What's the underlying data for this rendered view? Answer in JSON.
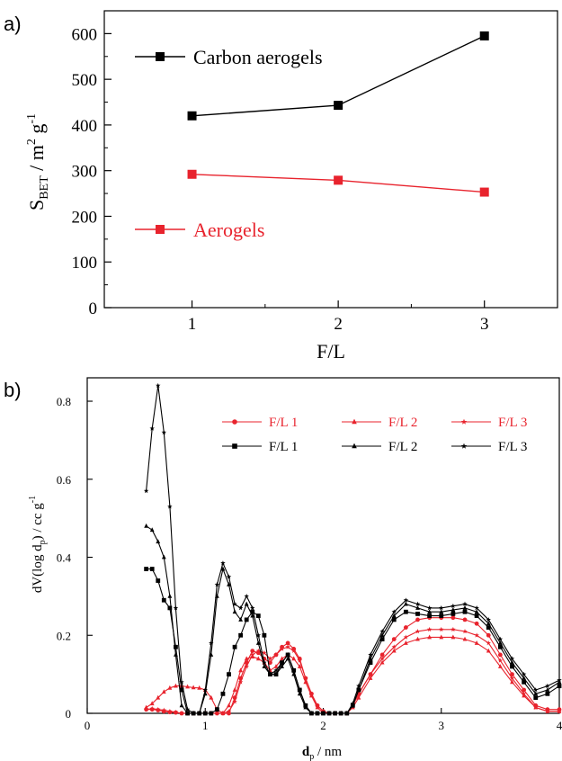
{
  "panels": {
    "a": "a)",
    "b": "b)"
  },
  "colors": {
    "black": "#000000",
    "red": "#e8232d"
  },
  "chart_data": [
    {
      "type": "line",
      "x": [
        1,
        2,
        3
      ],
      "xticks": [
        "1",
        "2",
        "3"
      ],
      "yticks": [
        "0",
        "100",
        "200",
        "300",
        "400",
        "500",
        "600"
      ],
      "xlim": [
        0.4,
        3.5
      ],
      "ylim": [
        0,
        650
      ],
      "xlabel": "F/L",
      "ylabel": {
        "main": "S",
        "sub": "BET",
        "unit": " / m",
        "sup1": "2",
        "unit2": " g",
        "sup2": "-1"
      },
      "series": [
        {
          "name": "Carbon aerogels",
          "color": "#000000",
          "marker": "square",
          "values": [
            420,
            443,
            595
          ]
        },
        {
          "name": "Aerogels",
          "color": "#e8232d",
          "marker": "square",
          "values": [
            292,
            279,
            253
          ]
        }
      ],
      "legend_placement": "left"
    },
    {
      "type": "line",
      "xlim": [
        0,
        4
      ],
      "ylim": [
        0,
        0.86
      ],
      "xticks": [
        "0",
        "1",
        "2",
        "3",
        "4"
      ],
      "yticks": [
        "0",
        "0.2",
        "0.4",
        "0.6",
        "0.8"
      ],
      "xlabel": {
        "main": "d",
        "sub": "p",
        "unit": " / nm"
      },
      "ylabel": {
        "pre": "dV(log d",
        "sub": "p",
        "post": ") / cc g",
        "sup": "-1"
      },
      "legend_placement": "top-right",
      "series": [
        {
          "name": "F/L 1",
          "color": "#e8232d",
          "marker": "circle",
          "x": [
            0.5,
            0.55,
            0.6,
            0.65,
            0.7,
            0.75,
            0.8,
            0.85,
            0.9,
            0.95,
            1.0,
            1.05,
            1.1,
            1.15,
            1.2,
            1.25,
            1.3,
            1.35,
            1.4,
            1.45,
            1.5,
            1.55,
            1.6,
            1.65,
            1.7,
            1.75,
            1.8,
            1.85,
            1.9,
            1.95,
            2.0,
            2.05,
            2.1,
            2.15,
            2.2,
            2.25,
            2.3,
            2.4,
            2.5,
            2.6,
            2.7,
            2.8,
            2.9,
            3.0,
            3.1,
            3.2,
            3.3,
            3.4,
            3.5,
            3.6,
            3.7,
            3.8,
            3.9,
            4.0
          ],
          "y": [
            0.01,
            0.01,
            0.008,
            0.005,
            0.003,
            0.002,
            0.0,
            0.0,
            0.0,
            0.0,
            0.0,
            0.0,
            0.0,
            0.0,
            0.0,
            0.04,
            0.09,
            0.13,
            0.16,
            0.155,
            0.14,
            0.13,
            0.15,
            0.17,
            0.18,
            0.165,
            0.14,
            0.09,
            0.05,
            0.02,
            0.005,
            0.0,
            0.0,
            0.0,
            0.0,
            0.02,
            0.05,
            0.1,
            0.15,
            0.19,
            0.22,
            0.24,
            0.245,
            0.245,
            0.245,
            0.24,
            0.23,
            0.2,
            0.15,
            0.1,
            0.06,
            0.02,
            0.01,
            0.01
          ]
        },
        {
          "name": "F/L 2",
          "color": "#e8232d",
          "marker": "triangle",
          "x": [
            0.5,
            0.55,
            0.6,
            0.65,
            0.7,
            0.75,
            0.8,
            0.85,
            0.9,
            0.95,
            1.0,
            1.05,
            1.1,
            1.15,
            1.2,
            1.25,
            1.3,
            1.35,
            1.4,
            1.45,
            1.5,
            1.55,
            1.6,
            1.65,
            1.7,
            1.75,
            1.8,
            1.85,
            1.9,
            1.95,
            2.0,
            2.05,
            2.1,
            2.15,
            2.2,
            2.25,
            2.3,
            2.4,
            2.5,
            2.6,
            2.7,
            2.8,
            2.9,
            3.0,
            3.1,
            3.2,
            3.3,
            3.4,
            3.5,
            3.6,
            3.7,
            3.8,
            3.9,
            4.0
          ],
          "y": [
            0.015,
            0.025,
            0.04,
            0.055,
            0.065,
            0.07,
            0.07,
            0.068,
            0.066,
            0.065,
            0.06,
            0.04,
            0.01,
            0.0,
            0.02,
            0.06,
            0.11,
            0.14,
            0.145,
            0.14,
            0.13,
            0.11,
            0.12,
            0.14,
            0.15,
            0.14,
            0.12,
            0.08,
            0.045,
            0.015,
            0.0,
            0.0,
            0.0,
            0.0,
            0.0,
            0.015,
            0.04,
            0.09,
            0.13,
            0.16,
            0.18,
            0.19,
            0.195,
            0.195,
            0.195,
            0.19,
            0.18,
            0.16,
            0.12,
            0.08,
            0.045,
            0.015,
            0.005,
            0.005
          ]
        },
        {
          "name": "F/L 3",
          "color": "#e8232d",
          "marker": "star",
          "x": [
            0.5,
            0.55,
            0.6,
            0.65,
            0.7,
            0.75,
            0.8,
            0.85,
            0.9,
            0.95,
            1.0,
            1.05,
            1.1,
            1.15,
            1.2,
            1.25,
            1.3,
            1.35,
            1.4,
            1.45,
            1.5,
            1.55,
            1.6,
            1.65,
            1.7,
            1.75,
            1.8,
            1.85,
            1.9,
            1.95,
            2.0,
            2.05,
            2.1,
            2.15,
            2.2,
            2.25,
            2.3,
            2.4,
            2.5,
            2.6,
            2.7,
            2.8,
            2.9,
            3.0,
            3.1,
            3.2,
            3.3,
            3.4,
            3.5,
            3.6,
            3.7,
            3.8,
            3.9,
            4.0
          ],
          "y": [
            0.01,
            0.012,
            0.01,
            0.008,
            0.005,
            0.003,
            0.0,
            0.0,
            0.0,
            0.0,
            0.0,
            0.0,
            0.0,
            0.0,
            0.005,
            0.03,
            0.08,
            0.12,
            0.15,
            0.16,
            0.155,
            0.14,
            0.15,
            0.165,
            0.17,
            0.16,
            0.135,
            0.09,
            0.05,
            0.02,
            0.005,
            0.0,
            0.0,
            0.0,
            0.0,
            0.02,
            0.05,
            0.1,
            0.14,
            0.17,
            0.195,
            0.21,
            0.215,
            0.215,
            0.215,
            0.21,
            0.2,
            0.18,
            0.135,
            0.09,
            0.05,
            0.015,
            0.005,
            0.005
          ]
        },
        {
          "name": "F/L 1",
          "color": "#000000",
          "marker": "square",
          "x": [
            0.5,
            0.55,
            0.6,
            0.65,
            0.7,
            0.75,
            0.8,
            0.85,
            0.9,
            0.95,
            1.0,
            1.05,
            1.1,
            1.15,
            1.2,
            1.25,
            1.3,
            1.35,
            1.4,
            1.45,
            1.5,
            1.55,
            1.6,
            1.65,
            1.7,
            1.75,
            1.8,
            1.85,
            1.9,
            1.95,
            2.0,
            2.05,
            2.1,
            2.15,
            2.2,
            2.25,
            2.3,
            2.4,
            2.5,
            2.6,
            2.7,
            2.8,
            2.9,
            3.0,
            3.1,
            3.2,
            3.3,
            3.4,
            3.5,
            3.6,
            3.7,
            3.8,
            3.9,
            4.0
          ],
          "y": [
            0.37,
            0.37,
            0.34,
            0.29,
            0.27,
            0.17,
            0.06,
            0.0,
            0.0,
            0.0,
            0.0,
            0.0,
            0.01,
            0.05,
            0.1,
            0.17,
            0.2,
            0.24,
            0.26,
            0.25,
            0.2,
            0.1,
            0.1,
            0.13,
            0.15,
            0.11,
            0.06,
            0.02,
            0.0,
            0.0,
            0.0,
            0.0,
            0.0,
            0.0,
            0.0,
            0.02,
            0.06,
            0.13,
            0.19,
            0.24,
            0.26,
            0.255,
            0.25,
            0.25,
            0.255,
            0.26,
            0.25,
            0.22,
            0.17,
            0.12,
            0.08,
            0.04,
            0.05,
            0.07
          ]
        },
        {
          "name": "F/L 2",
          "color": "#000000",
          "marker": "triangle",
          "x": [
            0.5,
            0.55,
            0.6,
            0.65,
            0.7,
            0.75,
            0.8,
            0.85,
            0.9,
            0.95,
            1.0,
            1.05,
            1.1,
            1.15,
            1.2,
            1.25,
            1.3,
            1.35,
            1.4,
            1.45,
            1.5,
            1.55,
            1.6,
            1.65,
            1.7,
            1.75,
            1.8,
            1.85,
            1.9,
            1.95,
            2.0,
            2.05,
            2.1,
            2.15,
            2.2,
            2.25,
            2.3,
            2.4,
            2.5,
            2.6,
            2.7,
            2.8,
            2.9,
            3.0,
            3.1,
            3.2,
            3.3,
            3.4,
            3.5,
            3.6,
            3.7,
            3.8,
            3.9,
            4.0
          ],
          "y": [
            0.48,
            0.47,
            0.44,
            0.4,
            0.3,
            0.15,
            0.02,
            0.0,
            0.0,
            0.0,
            0.05,
            0.15,
            0.3,
            0.37,
            0.33,
            0.26,
            0.24,
            0.28,
            0.25,
            0.18,
            0.12,
            0.1,
            0.1,
            0.12,
            0.14,
            0.1,
            0.05,
            0.015,
            0.0,
            0.0,
            0.0,
            0.0,
            0.0,
            0.0,
            0.0,
            0.02,
            0.06,
            0.14,
            0.2,
            0.25,
            0.28,
            0.27,
            0.26,
            0.26,
            0.265,
            0.27,
            0.26,
            0.23,
            0.18,
            0.13,
            0.09,
            0.05,
            0.06,
            0.08
          ]
        },
        {
          "name": "F/L 3",
          "color": "#000000",
          "marker": "star",
          "x": [
            0.5,
            0.55,
            0.6,
            0.65,
            0.7,
            0.75,
            0.8,
            0.85,
            0.9,
            0.95,
            1.0,
            1.05,
            1.1,
            1.15,
            1.2,
            1.25,
            1.3,
            1.35,
            1.4,
            1.45,
            1.5,
            1.55,
            1.6,
            1.65,
            1.7,
            1.75,
            1.8,
            1.85,
            1.9,
            1.95,
            2.0,
            2.05,
            2.1,
            2.15,
            2.2,
            2.25,
            2.3,
            2.4,
            2.5,
            2.6,
            2.7,
            2.8,
            2.9,
            3.0,
            3.1,
            3.2,
            3.3,
            3.4,
            3.5,
            3.6,
            3.7,
            3.8,
            3.9,
            4.0
          ],
          "y": [
            0.57,
            0.73,
            0.84,
            0.72,
            0.53,
            0.27,
            0.08,
            0.01,
            0.0,
            0.0,
            0.06,
            0.18,
            0.33,
            0.385,
            0.35,
            0.28,
            0.27,
            0.3,
            0.27,
            0.2,
            0.13,
            0.1,
            0.11,
            0.13,
            0.15,
            0.11,
            0.06,
            0.02,
            0.0,
            0.0,
            0.0,
            0.0,
            0.0,
            0.0,
            0.0,
            0.025,
            0.07,
            0.15,
            0.21,
            0.26,
            0.29,
            0.28,
            0.27,
            0.27,
            0.275,
            0.28,
            0.27,
            0.24,
            0.19,
            0.14,
            0.1,
            0.06,
            0.07,
            0.085
          ]
        }
      ]
    }
  ]
}
